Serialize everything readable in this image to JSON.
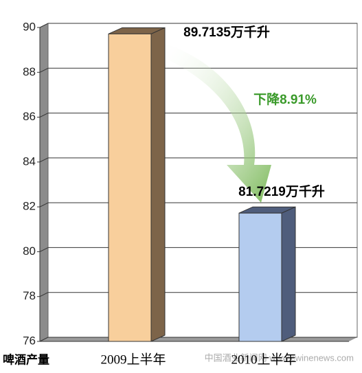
{
  "chart_data": {
    "type": "bar3d",
    "categories": [
      "2009上半年",
      "2010上半年"
    ],
    "values": [
      89.7135,
      81.7219
    ],
    "value_labels": [
      "89.7135万千升",
      "81.7219万千升"
    ],
    "colors": [
      "#f8cf9c",
      "#b4ccef"
    ],
    "side_colors": [
      "#7d6449",
      "#4f5d7c"
    ],
    "ylim": [
      76,
      90
    ],
    "yticks": [
      76,
      78,
      80,
      82,
      84,
      86,
      88,
      90
    ],
    "grid": true,
    "x_label": "啤酒产量",
    "annotation": "下降8.91%",
    "watermark": "中国酒业新闻网 www.cwinenews.com"
  }
}
